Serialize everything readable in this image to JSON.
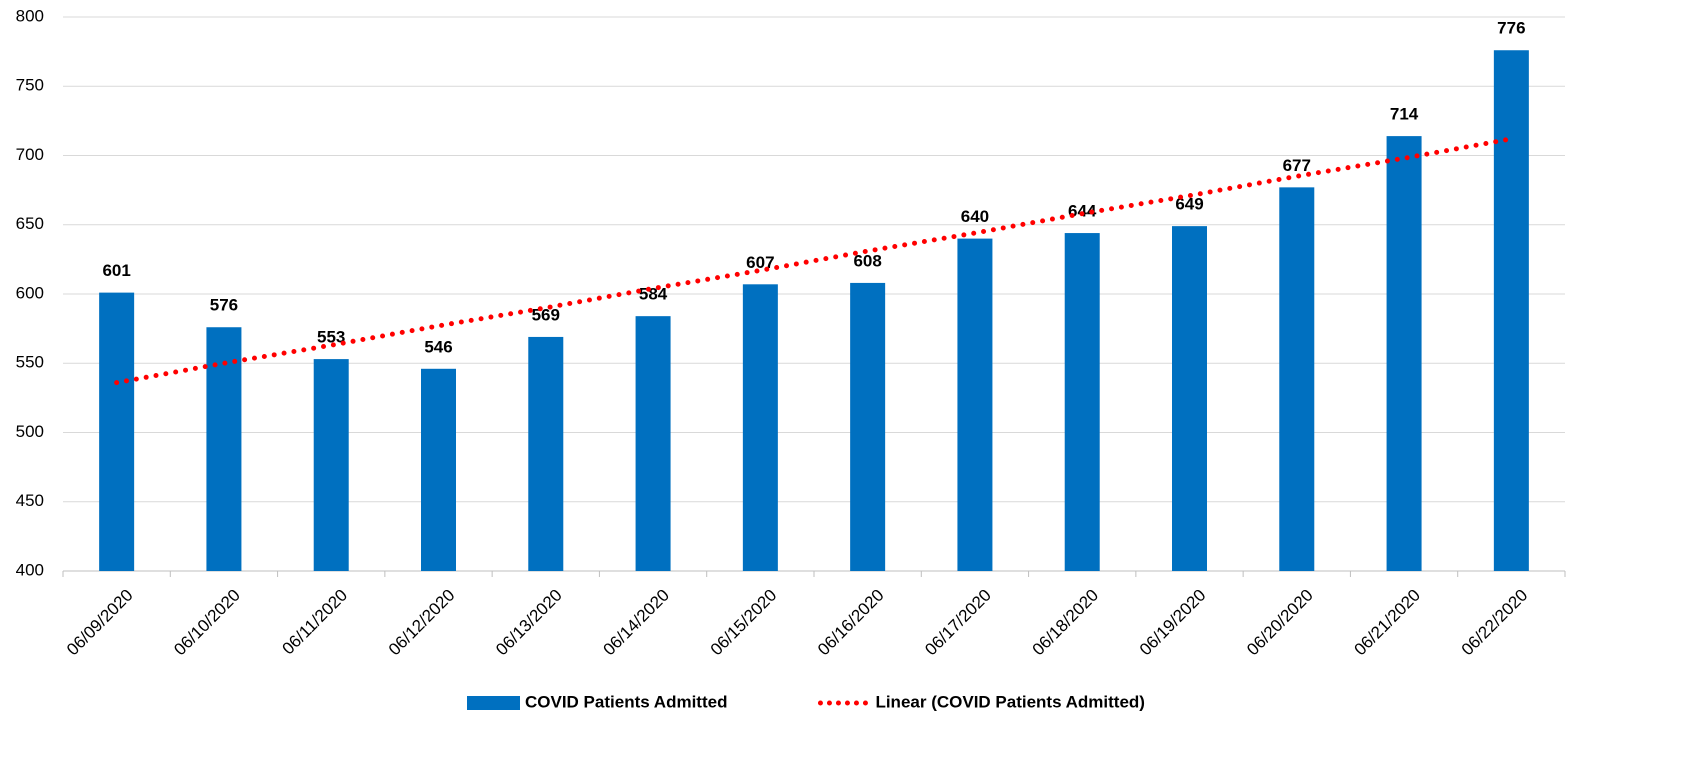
{
  "chart_data": {
    "type": "bar",
    "categories": [
      "06/09/2020",
      "06/10/2020",
      "06/11/2020",
      "06/12/2020",
      "06/13/2020",
      "06/14/2020",
      "06/15/2020",
      "06/16/2020",
      "06/17/2020",
      "06/18/2020",
      "06/19/2020",
      "06/20/2020",
      "06/21/2020",
      "06/22/2020"
    ],
    "series": [
      {
        "name": "COVID Patients Admitted",
        "type": "bar",
        "color": "#0070c0",
        "values": [
          601,
          576,
          553,
          546,
          569,
          584,
          607,
          608,
          640,
          644,
          649,
          677,
          714,
          776
        ]
      },
      {
        "name": "Linear (COVID Patients Admitted)",
        "type": "line",
        "color": "#ff0000",
        "values": [
          536,
          550,
          563,
          577,
          590,
          604,
          617,
          631,
          644,
          658,
          671,
          685,
          698,
          712
        ]
      }
    ],
    "ylim": [
      400,
      800
    ],
    "yticks": [
      400,
      450,
      500,
      550,
      600,
      650,
      700,
      750,
      800
    ],
    "grid": true,
    "legend": "bottom"
  }
}
